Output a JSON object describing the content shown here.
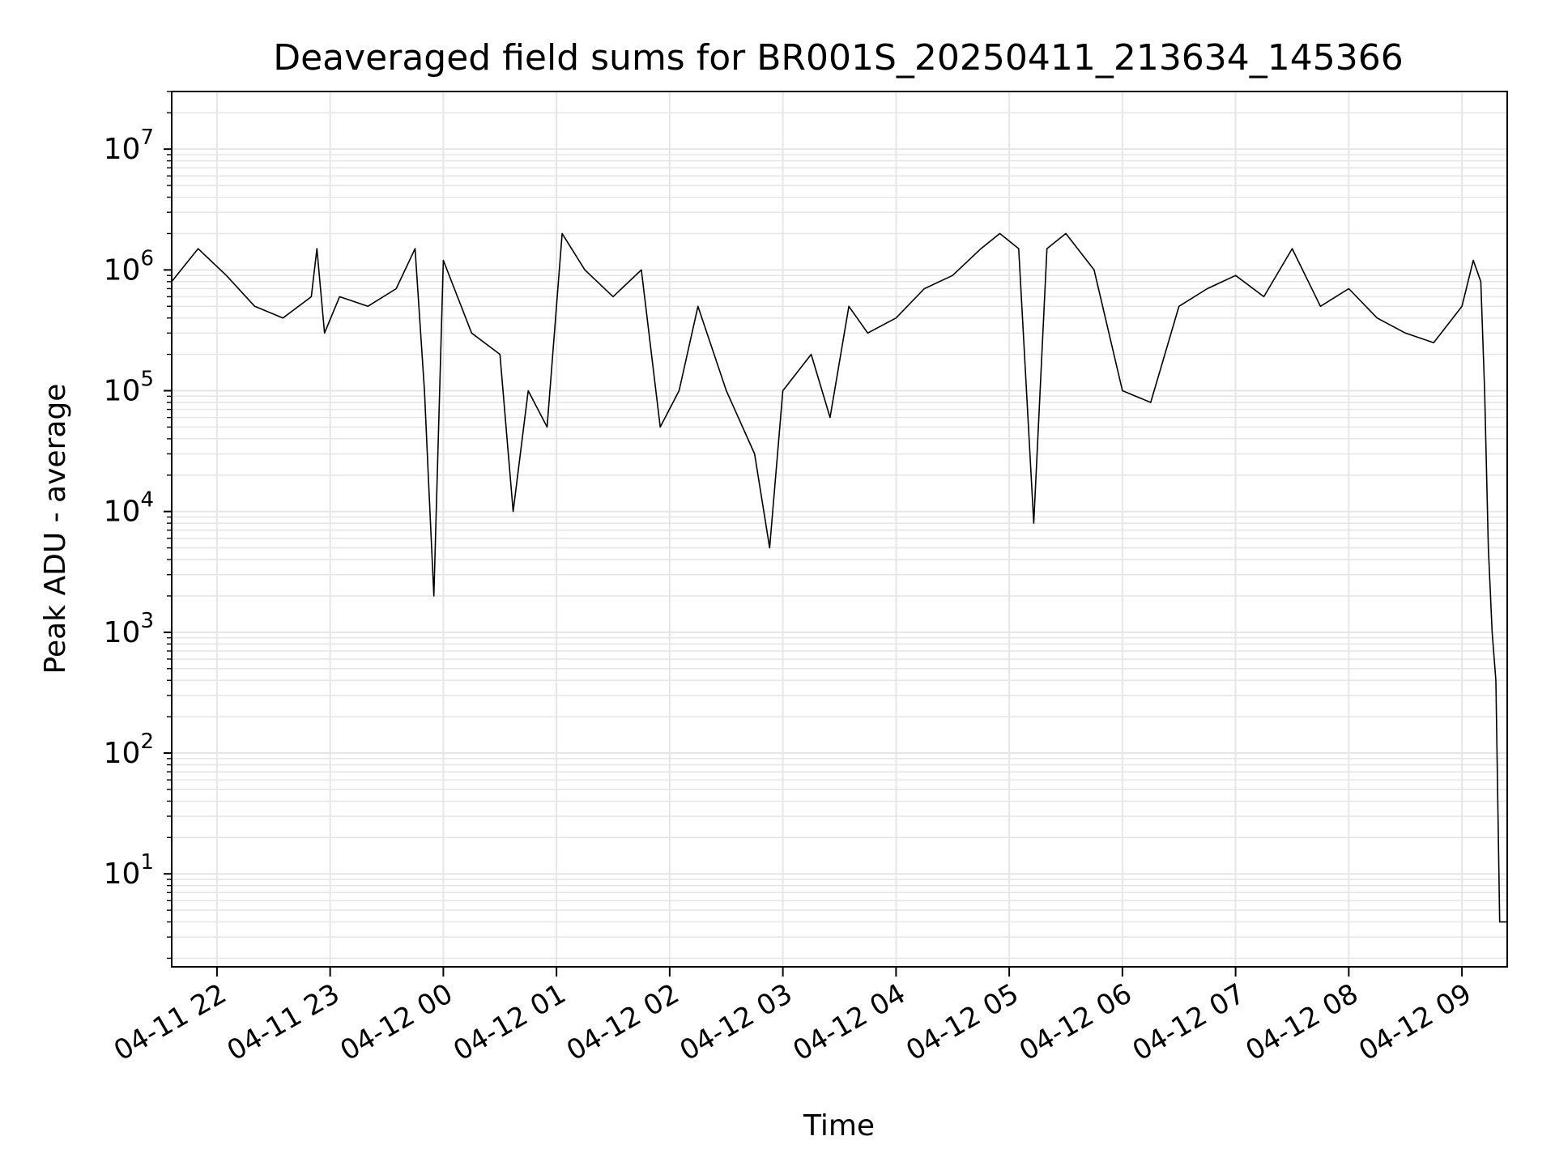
{
  "chart_data": {
    "type": "line",
    "title": "Deaveraged field sums for BR001S_20250411_213634_145366",
    "xlabel": "Time",
    "ylabel": "Peak ADU - average",
    "yscale": "log",
    "ylim": [
      1.7,
      30000000
    ],
    "xlim": [
      "2025-04-11 21:36",
      "2025-04-12 09:24"
    ],
    "grid": true,
    "line_color": "#000000",
    "x_ticks": [
      "04-11 22",
      "04-11 23",
      "04-12 00",
      "04-12 01",
      "04-12 02",
      "04-12 03",
      "04-12 04",
      "04-12 05",
      "04-12 06",
      "04-12 07",
      "04-12 08",
      "04-12 09"
    ],
    "y_tick_bases": [
      "10",
      "10",
      "10",
      "10",
      "10",
      "10",
      "10"
    ],
    "y_tick_exponents": [
      "1",
      "2",
      "3",
      "4",
      "5",
      "6",
      "7"
    ],
    "series": [
      {
        "x": [
          "2025-04-11 21:36",
          "2025-04-11 21:50",
          "2025-04-11 22:05",
          "2025-04-11 22:20",
          "2025-04-11 22:35",
          "2025-04-11 22:50",
          "2025-04-11 22:53",
          "2025-04-11 22:57",
          "2025-04-11 23:05",
          "2025-04-11 23:20",
          "2025-04-11 23:35",
          "2025-04-11 23:45",
          "2025-04-11 23:50",
          "2025-04-11 23:52",
          "2025-04-11 23:55",
          "2025-04-12 00:00",
          "2025-04-12 00:15",
          "2025-04-12 00:30",
          "2025-04-12 00:37",
          "2025-04-12 00:45",
          "2025-04-12 00:55",
          "2025-04-12 01:03",
          "2025-04-12 01:15",
          "2025-04-12 01:30",
          "2025-04-12 01:45",
          "2025-04-12 01:55",
          "2025-04-12 02:05",
          "2025-04-12 02:15",
          "2025-04-12 02:30",
          "2025-04-12 02:45",
          "2025-04-12 02:53",
          "2025-04-12 03:00",
          "2025-04-12 03:15",
          "2025-04-12 03:25",
          "2025-04-12 03:35",
          "2025-04-12 03:45",
          "2025-04-12 04:00",
          "2025-04-12 04:15",
          "2025-04-12 04:30",
          "2025-04-12 04:45",
          "2025-04-12 04:55",
          "2025-04-12 05:05",
          "2025-04-12 05:13",
          "2025-04-12 05:20",
          "2025-04-12 05:30",
          "2025-04-12 05:45",
          "2025-04-12 06:00",
          "2025-04-12 06:15",
          "2025-04-12 06:30",
          "2025-04-12 06:45",
          "2025-04-12 07:00",
          "2025-04-12 07:15",
          "2025-04-12 07:30",
          "2025-04-12 07:45",
          "2025-04-12 08:00",
          "2025-04-12 08:15",
          "2025-04-12 08:30",
          "2025-04-12 08:45",
          "2025-04-12 09:00",
          "2025-04-12 09:06",
          "2025-04-12 09:10",
          "2025-04-12 09:12",
          "2025-04-12 09:14",
          "2025-04-12 09:16",
          "2025-04-12 09:18",
          "2025-04-12 09:20",
          "2025-04-12 09:24"
        ],
        "y": [
          800000,
          1500000,
          900000,
          500000,
          400000,
          600000,
          1500000,
          300000,
          600000,
          500000,
          700000,
          1500000,
          100000,
          20000,
          2000,
          1200000,
          300000,
          200000,
          10000,
          100000,
          50000,
          2000000,
          1000000,
          600000,
          1000000,
          50000,
          100000,
          500000,
          100000,
          30000,
          5000,
          100000,
          200000,
          60000,
          500000,
          300000,
          400000,
          700000,
          900000,
          1500000,
          2000000,
          1500000,
          8000,
          1500000,
          2000000,
          1000000,
          100000,
          80000,
          500000,
          700000,
          900000,
          600000,
          1500000,
          500000,
          700000,
          400000,
          300000,
          250000,
          500000,
          1200000,
          800000,
          100000,
          5000,
          1000,
          400,
          4,
          4
        ]
      }
    ]
  }
}
